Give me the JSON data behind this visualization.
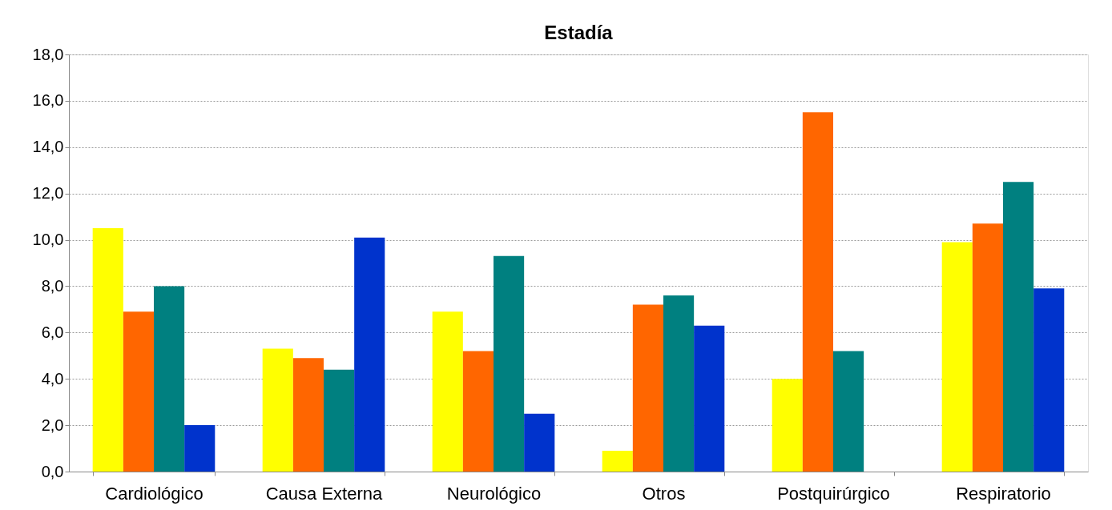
{
  "chart_data": {
    "type": "bar",
    "title": "Estadía",
    "categories": [
      "Cardiológico",
      "Causa Externa",
      "Neurológico",
      "Otros",
      "Postquirúrgico",
      "Respiratorio"
    ],
    "series": [
      {
        "color": "#ffff00",
        "values": [
          10.5,
          5.3,
          6.9,
          0.9,
          4.0,
          9.9
        ]
      },
      {
        "color": "#ff6600",
        "values": [
          6.9,
          4.9,
          5.2,
          7.2,
          15.5,
          10.7
        ]
      },
      {
        "color": "#008080",
        "values": [
          8.0,
          4.4,
          9.3,
          7.6,
          5.2,
          12.5
        ]
      },
      {
        "color": "#0033cc",
        "values": [
          2.0,
          10.1,
          2.5,
          6.3,
          null,
          7.9
        ]
      }
    ],
    "ylim": [
      0,
      18
    ],
    "yticks": [
      {
        "value": 0,
        "label": "0,0"
      },
      {
        "value": 2,
        "label": "2,0"
      },
      {
        "value": 4,
        "label": "4,0"
      },
      {
        "value": 6,
        "label": "6,0"
      },
      {
        "value": 8,
        "label": "8,0"
      },
      {
        "value": 10,
        "label": "10,0"
      },
      {
        "value": 12,
        "label": "12,0"
      },
      {
        "value": 14,
        "label": "14,0"
      },
      {
        "value": 16,
        "label": "16,0"
      },
      {
        "value": 18,
        "label": "18,0"
      }
    ],
    "grid": "y",
    "legend": false
  }
}
